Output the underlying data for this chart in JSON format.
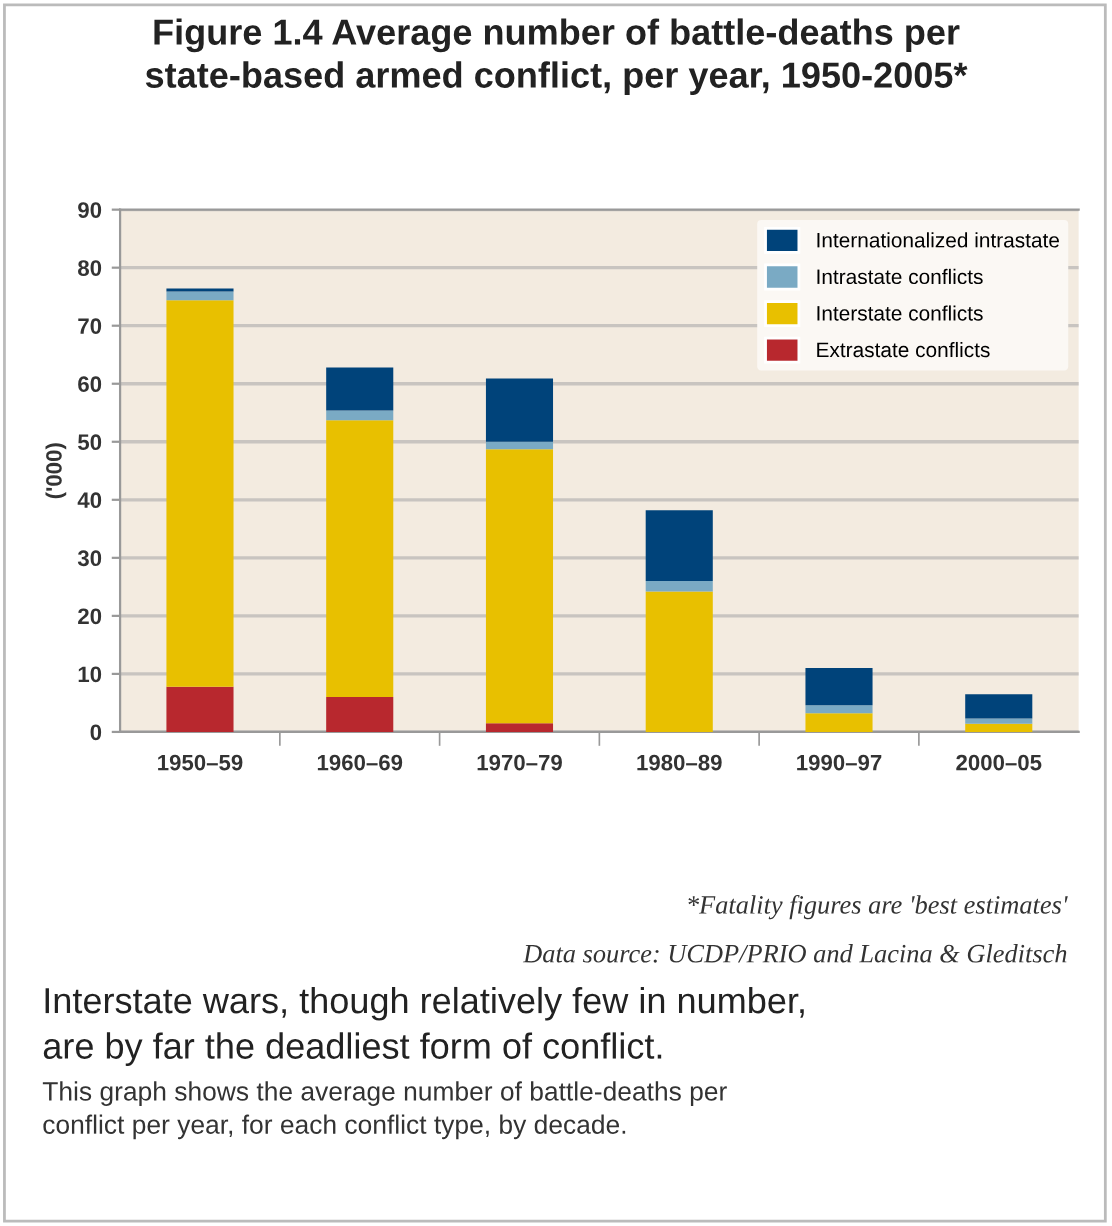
{
  "chart_data": {
    "type": "bar",
    "stacked": true,
    "title": "Figure 1.4 Average number of battle-deaths per\nstate-based armed conflict, per year, 1950-2005*",
    "ylabel": "('000)",
    "categories": [
      "1950–59",
      "1960–69",
      "1970–79",
      "1980–89",
      "1990–97",
      "2000–05"
    ],
    "series": [
      {
        "name": "Extrastate conflicts",
        "color": "#b8282e",
        "values": [
          7.8,
          6.0,
          1.5,
          0,
          0,
          0
        ]
      },
      {
        "name": "Interstate conflicts",
        "color": "#e8c000",
        "values": [
          66.6,
          47.7,
          47.2,
          24.2,
          3.2,
          1.4
        ]
      },
      {
        "name": "Intrastate conflicts",
        "color": "#7aaac4",
        "values": [
          1.5,
          1.7,
          1.3,
          1.8,
          1.4,
          0.9
        ]
      },
      {
        "name": "Internationalized intrastate",
        "color": "#00437a",
        "values": [
          0.5,
          7.4,
          10.9,
          12.2,
          6.4,
          4.2
        ]
      }
    ],
    "ylim": [
      0,
      90
    ],
    "yticks": [
      0,
      10,
      20,
      30,
      40,
      50,
      60,
      70,
      80,
      90
    ],
    "grid": "y",
    "legend": "top right",
    "annotations": [
      "*Fatality figures are 'best estimates'",
      "Data source: UCDP/PRIO and Lacina & Gleditsch",
      "Interstate wars, though relatively few in number,\nare by far the deadliest form of conflict.",
      "This graph shows the average number of battle-deaths per\nconflict per year, for each conflict type, by decade."
    ]
  }
}
